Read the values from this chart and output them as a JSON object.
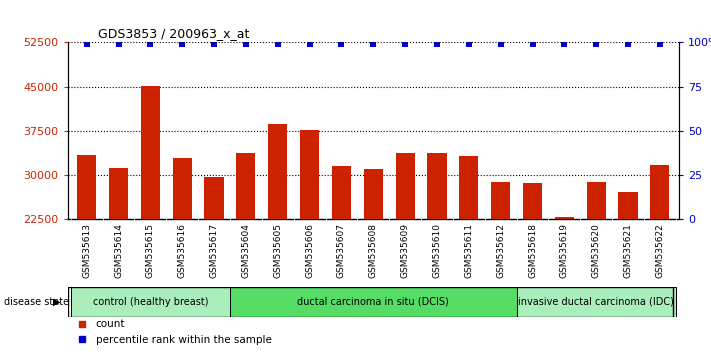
{
  "title": "GDS3853 / 200963_x_at",
  "samples": [
    "GSM535613",
    "GSM535614",
    "GSM535615",
    "GSM535616",
    "GSM535617",
    "GSM535604",
    "GSM535605",
    "GSM535606",
    "GSM535607",
    "GSM535608",
    "GSM535609",
    "GSM535610",
    "GSM535611",
    "GSM535612",
    "GSM535618",
    "GSM535619",
    "GSM535620",
    "GSM535621",
    "GSM535622"
  ],
  "counts": [
    33500,
    31200,
    45200,
    33000,
    29700,
    33700,
    38600,
    37600,
    31500,
    31000,
    33800,
    33800,
    33200,
    28800,
    28600,
    23000,
    28900,
    27200,
    31800
  ],
  "percentiles": [
    99,
    99,
    99,
    99,
    99,
    99,
    99,
    99,
    99,
    99,
    99,
    99,
    99,
    99,
    99,
    99,
    99,
    99,
    99
  ],
  "bar_color": "#cc2200",
  "percentile_color": "#0000cc",
  "ylim_left": [
    22500,
    52500
  ],
  "ylim_right": [
    0,
    100
  ],
  "yticks_left": [
    22500,
    30000,
    37500,
    45000,
    52500
  ],
  "yticks_right": [
    0,
    25,
    50,
    75,
    100
  ],
  "groups": [
    {
      "label": "control (healthy breast)",
      "start": 0,
      "end": 5,
      "color": "#aaeebb"
    },
    {
      "label": "ductal carcinoma in situ (DCIS)",
      "start": 5,
      "end": 14,
      "color": "#55dd66"
    },
    {
      "label": "invasive ductal carcinoma (IDC)",
      "start": 14,
      "end": 19,
      "color": "#aaeebb"
    }
  ],
  "disease_state_label": "disease state",
  "legend_count_label": "count",
  "legend_percentile_label": "percentile rank within the sample",
  "xtick_bg": "#c8c8c8",
  "dotted_lines": [
    30000,
    37500,
    45000,
    52500
  ],
  "bar_baseline": 22500
}
